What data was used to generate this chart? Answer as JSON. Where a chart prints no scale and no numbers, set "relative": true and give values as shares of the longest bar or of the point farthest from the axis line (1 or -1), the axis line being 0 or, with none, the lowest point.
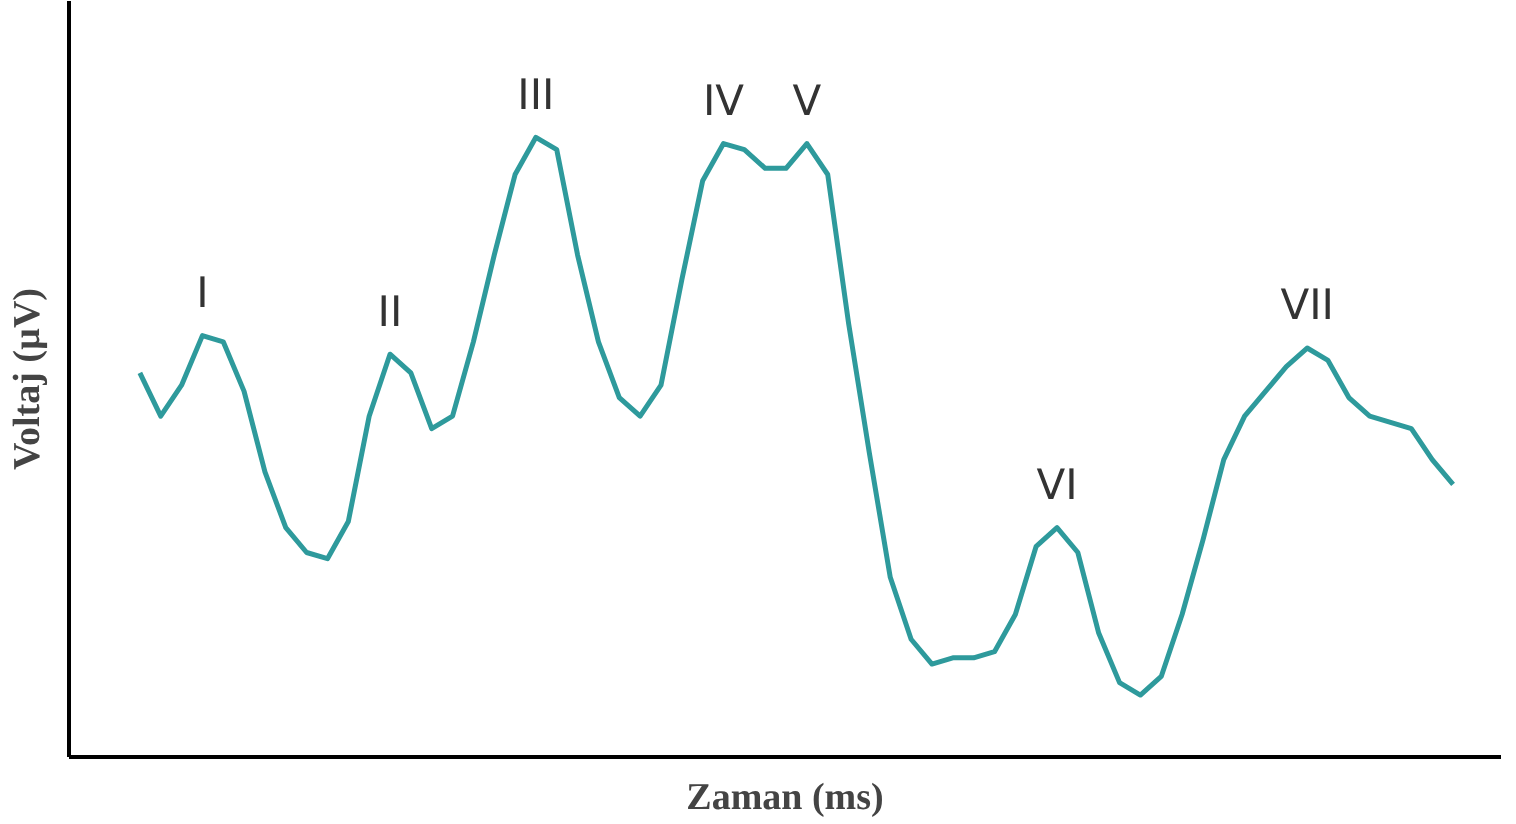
{
  "chart_data": {
    "type": "line",
    "relative": true,
    "xlabel": "Zaman (ms)",
    "ylabel": "Voltaj (µV)",
    "grid": false,
    "marker": "none",
    "line_style": "solid",
    "categories": [
      null,
      null,
      null,
      null,
      null,
      null,
      null,
      null,
      null,
      null,
      null,
      null,
      null,
      null,
      null,
      null,
      null,
      null,
      null,
      null,
      null,
      null,
      null,
      null,
      null,
      null,
      null,
      null,
      null,
      null,
      null,
      null,
      null,
      null,
      null,
      null,
      null,
      null,
      null,
      null,
      null,
      null,
      null,
      null,
      null,
      null,
      null,
      null,
      null,
      null,
      null,
      null,
      null,
      null,
      null,
      null,
      null,
      null,
      null,
      null,
      null,
      null,
      null,
      null
    ],
    "series": [
      {
        "color": "#2e9a9c",
        "values": [
          0.62,
          0.55,
          0.6,
          0.68,
          0.67,
          0.59,
          0.46,
          0.37,
          0.33,
          0.32,
          0.38,
          0.55,
          0.65,
          0.62,
          0.53,
          0.55,
          0.67,
          0.81,
          0.94,
          1,
          0.98,
          0.81,
          0.67,
          0.58,
          0.55,
          0.6,
          0.77,
          0.93,
          0.99,
          0.98,
          0.95,
          0.95,
          0.99,
          0.94,
          0.7,
          0.49,
          0.29,
          0.19,
          0.15,
          0.16,
          0.16,
          0.17,
          0.23,
          0.34,
          0.37,
          0.33,
          0.2,
          0.12,
          0.1,
          0.13,
          0.23,
          0.35,
          0.48,
          0.55,
          0.59,
          0.63,
          0.66,
          0.64,
          0.58,
          0.55,
          0.54,
          0.53,
          0.48,
          0.44
        ]
      }
    ],
    "annotations": [
      {
        "text": "I",
        "y": 0.68
      },
      {
        "text": "II",
        "y": 0.65
      },
      {
        "text": "III",
        "y": 1
      },
      {
        "text": "IV",
        "y": 0.99
      },
      {
        "text": "V",
        "y": 0.99
      },
      {
        "text": "VI",
        "y": 0.37
      },
      {
        "text": "VII",
        "y": 0.66
      }
    ]
  }
}
